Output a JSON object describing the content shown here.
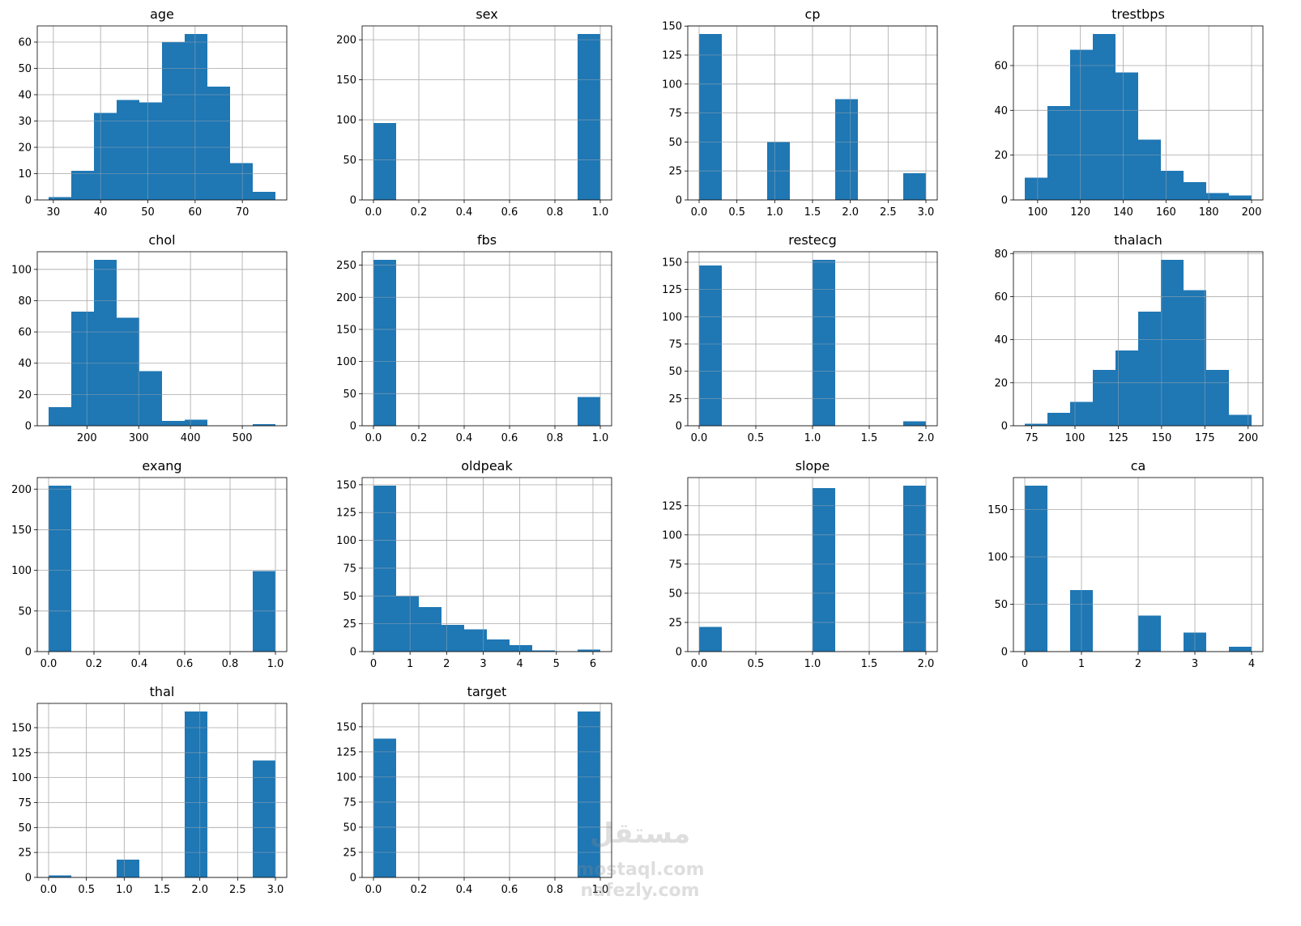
{
  "chart_data": [
    {
      "type": "bar",
      "title": "age",
      "bins": [
        [
          29,
          33.8,
          1
        ],
        [
          33.8,
          38.6,
          11
        ],
        [
          38.6,
          43.4,
          33
        ],
        [
          43.4,
          48.2,
          38
        ],
        [
          48.2,
          53,
          37
        ],
        [
          53,
          57.8,
          60
        ],
        [
          57.8,
          62.6,
          63
        ],
        [
          62.6,
          67.4,
          43
        ],
        [
          67.4,
          72.2,
          14
        ],
        [
          72.2,
          77,
          3
        ]
      ],
      "xlim": [
        26.6,
        79.4
      ],
      "ylim": [
        0,
        66.15
      ],
      "xticks": [
        30,
        40,
        50,
        60,
        70
      ],
      "xtick_labels": [
        "30",
        "40",
        "50",
        "60",
        "70"
      ],
      "yticks": [
        0,
        10,
        20,
        30,
        40,
        50,
        60
      ],
      "ytick_labels": [
        "0",
        "10",
        "20",
        "30",
        "40",
        "50",
        "60"
      ]
    },
    {
      "type": "bar",
      "title": "sex",
      "bins": [
        [
          0,
          0.1,
          96
        ],
        [
          0.9,
          1,
          207
        ]
      ],
      "xlim": [
        -0.05,
        1.05
      ],
      "ylim": [
        0,
        217.35
      ],
      "xticks": [
        0,
        0.2,
        0.4,
        0.6,
        0.8,
        1.0
      ],
      "xtick_labels": [
        "0.0",
        "0.2",
        "0.4",
        "0.6",
        "0.8",
        "1.0"
      ],
      "yticks": [
        0,
        50,
        100,
        150,
        200
      ],
      "ytick_labels": [
        "0",
        "50",
        "100",
        "150",
        "200"
      ]
    },
    {
      "type": "bar",
      "title": "cp",
      "bins": [
        [
          0,
          0.3,
          143
        ],
        [
          0.9,
          1.2,
          50
        ],
        [
          1.8,
          2.1,
          87
        ],
        [
          2.7,
          3,
          23
        ]
      ],
      "xlim": [
        -0.15,
        3.15
      ],
      "ylim": [
        0,
        150.15
      ],
      "xticks": [
        0,
        0.5,
        1,
        1.5,
        2,
        2.5,
        3
      ],
      "xtick_labels": [
        "0.0",
        "0.5",
        "1.0",
        "1.5",
        "2.0",
        "2.5",
        "3.0"
      ],
      "yticks": [
        0,
        25,
        50,
        75,
        100,
        125,
        150
      ],
      "ytick_labels": [
        "0",
        "25",
        "50",
        "75",
        "100",
        "125",
        "150"
      ]
    },
    {
      "type": "bar",
      "title": "trestbps",
      "bins": [
        [
          94,
          104.6,
          10
        ],
        [
          104.6,
          115.2,
          42
        ],
        [
          115.2,
          125.8,
          67
        ],
        [
          125.8,
          136.4,
          74
        ],
        [
          136.4,
          147,
          57
        ],
        [
          147,
          157.6,
          27
        ],
        [
          157.6,
          168.2,
          13
        ],
        [
          168.2,
          178.8,
          8
        ],
        [
          178.8,
          189.4,
          3
        ],
        [
          189.4,
          200,
          2
        ]
      ],
      "xlim": [
        88.7,
        205.3
      ],
      "ylim": [
        0,
        77.7
      ],
      "xticks": [
        100,
        120,
        140,
        160,
        180,
        200
      ],
      "xtick_labels": [
        "100",
        "120",
        "140",
        "160",
        "180",
        "200"
      ],
      "yticks": [
        0,
        20,
        40,
        60
      ],
      "ytick_labels": [
        "0",
        "20",
        "40",
        "60"
      ]
    },
    {
      "type": "bar",
      "title": "chol",
      "bins": [
        [
          126,
          169.8,
          12
        ],
        [
          169.8,
          213.6,
          73
        ],
        [
          213.6,
          257.4,
          106
        ],
        [
          257.4,
          301.2,
          69
        ],
        [
          301.2,
          345,
          35
        ],
        [
          345,
          388.8,
          3
        ],
        [
          388.8,
          432.6,
          4
        ],
        [
          432.6,
          476.4,
          0
        ],
        [
          476.4,
          520.2,
          0
        ],
        [
          520.2,
          564,
          1
        ]
      ],
      "xlim": [
        104.1,
        585.9
      ],
      "ylim": [
        0,
        111.3
      ],
      "xticks": [
        200,
        300,
        400,
        500
      ],
      "xtick_labels": [
        "200",
        "300",
        "400",
        "500"
      ],
      "yticks": [
        0,
        20,
        40,
        60,
        80,
        100
      ],
      "ytick_labels": [
        "0",
        "20",
        "40",
        "60",
        "80",
        "100"
      ]
    },
    {
      "type": "bar",
      "title": "fbs",
      "bins": [
        [
          0,
          0.1,
          258
        ],
        [
          0.9,
          1,
          45
        ]
      ],
      "xlim": [
        -0.05,
        1.05
      ],
      "ylim": [
        0,
        270.9
      ],
      "xticks": [
        0,
        0.2,
        0.4,
        0.6,
        0.8,
        1.0
      ],
      "xtick_labels": [
        "0.0",
        "0.2",
        "0.4",
        "0.6",
        "0.8",
        "1.0"
      ],
      "yticks": [
        0,
        50,
        100,
        150,
        200,
        250
      ],
      "ytick_labels": [
        "0",
        "50",
        "100",
        "150",
        "200",
        "250"
      ]
    },
    {
      "type": "bar",
      "title": "restecg",
      "bins": [
        [
          0,
          0.2,
          147
        ],
        [
          1,
          1.2,
          152
        ],
        [
          1.8,
          2,
          4
        ]
      ],
      "xlim": [
        -0.1,
        2.1
      ],
      "ylim": [
        0,
        159.6
      ],
      "xticks": [
        0,
        0.5,
        1,
        1.5,
        2
      ],
      "xtick_labels": [
        "0.0",
        "0.5",
        "1.0",
        "1.5",
        "2.0"
      ],
      "yticks": [
        0,
        25,
        50,
        75,
        100,
        125,
        150
      ],
      "ytick_labels": [
        "0",
        "25",
        "50",
        "75",
        "100",
        "125",
        "150"
      ]
    },
    {
      "type": "bar",
      "title": "thalach",
      "bins": [
        [
          71,
          84.1,
          1
        ],
        [
          84.1,
          97.2,
          6
        ],
        [
          97.2,
          110.3,
          11
        ],
        [
          110.3,
          123.4,
          26
        ],
        [
          123.4,
          136.5,
          35
        ],
        [
          136.5,
          149.6,
          53
        ],
        [
          149.6,
          162.7,
          77
        ],
        [
          162.7,
          175.8,
          63
        ],
        [
          175.8,
          188.9,
          26
        ],
        [
          188.9,
          202,
          5
        ]
      ],
      "xlim": [
        64.45,
        208.55
      ],
      "ylim": [
        0,
        80.85
      ],
      "xticks": [
        75,
        100,
        125,
        150,
        175,
        200
      ],
      "xtick_labels": [
        "75",
        "100",
        "125",
        "150",
        "175",
        "200"
      ],
      "yticks": [
        0,
        20,
        40,
        60,
        80
      ],
      "ytick_labels": [
        "0",
        "20",
        "40",
        "60",
        "80"
      ]
    },
    {
      "type": "bar",
      "title": "exang",
      "bins": [
        [
          0,
          0.1,
          204
        ],
        [
          0.9,
          1,
          99
        ]
      ],
      "xlim": [
        -0.05,
        1.05
      ],
      "ylim": [
        0,
        214.2
      ],
      "xticks": [
        0,
        0.2,
        0.4,
        0.6,
        0.8,
        1.0
      ],
      "xtick_labels": [
        "0.0",
        "0.2",
        "0.4",
        "0.6",
        "0.8",
        "1.0"
      ],
      "yticks": [
        0,
        50,
        100,
        150,
        200
      ],
      "ytick_labels": [
        "0",
        "50",
        "100",
        "150",
        "200"
      ]
    },
    {
      "type": "bar",
      "title": "oldpeak",
      "bins": [
        [
          0,
          0.62,
          149
        ],
        [
          0.62,
          1.24,
          50
        ],
        [
          1.24,
          1.86,
          40
        ],
        [
          1.86,
          2.48,
          24
        ],
        [
          2.48,
          3.1,
          20
        ],
        [
          3.1,
          3.72,
          11
        ],
        [
          3.72,
          4.34,
          6
        ],
        [
          4.34,
          4.96,
          1
        ],
        [
          4.96,
          5.58,
          0
        ],
        [
          5.58,
          6.2,
          2
        ]
      ],
      "xlim": [
        -0.31,
        6.51
      ],
      "ylim": [
        0,
        156.45
      ],
      "xticks": [
        0,
        1,
        2,
        3,
        4,
        5,
        6
      ],
      "xtick_labels": [
        "0",
        "1",
        "2",
        "3",
        "4",
        "5",
        "6"
      ],
      "yticks": [
        0,
        25,
        50,
        75,
        100,
        125,
        150
      ],
      "ytick_labels": [
        "0",
        "25",
        "50",
        "75",
        "100",
        "125",
        "150"
      ]
    },
    {
      "type": "bar",
      "title": "slope",
      "bins": [
        [
          0,
          0.2,
          21
        ],
        [
          1,
          1.2,
          140
        ],
        [
          1.8,
          2,
          142
        ]
      ],
      "xlim": [
        -0.1,
        2.1
      ],
      "ylim": [
        0,
        149.1
      ],
      "xticks": [
        0,
        0.5,
        1,
        1.5,
        2
      ],
      "xtick_labels": [
        "0.0",
        "0.5",
        "1.0",
        "1.5",
        "2.0"
      ],
      "yticks": [
        0,
        25,
        50,
        75,
        100,
        125
      ],
      "ytick_labels": [
        "0",
        "25",
        "50",
        "75",
        "100",
        "125"
      ]
    },
    {
      "type": "bar",
      "title": "ca",
      "bins": [
        [
          0,
          0.4,
          175
        ],
        [
          0.8,
          1.2,
          65
        ],
        [
          2,
          2.4,
          38
        ],
        [
          2.8,
          3.2,
          20
        ],
        [
          3.6,
          4,
          5
        ]
      ],
      "xlim": [
        -0.2,
        4.2
      ],
      "ylim": [
        0,
        183.75
      ],
      "xticks": [
        0,
        1,
        2,
        3,
        4
      ],
      "xtick_labels": [
        "0",
        "1",
        "2",
        "3",
        "4"
      ],
      "yticks": [
        0,
        50,
        100,
        150
      ],
      "ytick_labels": [
        "0",
        "50",
        "100",
        "150"
      ]
    },
    {
      "type": "bar",
      "title": "thal",
      "bins": [
        [
          0,
          0.3,
          2
        ],
        [
          0.9,
          1.2,
          18
        ],
        [
          1.8,
          2.1,
          166
        ],
        [
          2.7,
          3,
          117
        ]
      ],
      "xlim": [
        -0.15,
        3.15
      ],
      "ylim": [
        0,
        174.3
      ],
      "xticks": [
        0,
        0.5,
        1,
        1.5,
        2,
        2.5,
        3
      ],
      "xtick_labels": [
        "0.0",
        "0.5",
        "1.0",
        "1.5",
        "2.0",
        "2.5",
        "3.0"
      ],
      "yticks": [
        0,
        25,
        50,
        75,
        100,
        125,
        150
      ],
      "ytick_labels": [
        "0",
        "25",
        "50",
        "75",
        "100",
        "125",
        "150"
      ]
    },
    {
      "type": "bar",
      "title": "target",
      "bins": [
        [
          0,
          0.1,
          138
        ],
        [
          0.9,
          1,
          165
        ]
      ],
      "xlim": [
        -0.05,
        1.05
      ],
      "ylim": [
        0,
        173.25
      ],
      "xticks": [
        0,
        0.2,
        0.4,
        0.6,
        0.8,
        1.0
      ],
      "xtick_labels": [
        "0.0",
        "0.2",
        "0.4",
        "0.6",
        "0.8",
        "1.0"
      ],
      "yticks": [
        0,
        25,
        50,
        75,
        100,
        125,
        150
      ],
      "ytick_labels": [
        "0",
        "25",
        "50",
        "75",
        "100",
        "125",
        "150"
      ]
    }
  ],
  "style": {
    "bar_color": "#1f77b4",
    "grid": true,
    "grid_color": "#b0b0b0"
  },
  "watermark": {
    "lines": [
      "مستقل",
      "mostaql.com",
      "nafezly.com"
    ]
  }
}
